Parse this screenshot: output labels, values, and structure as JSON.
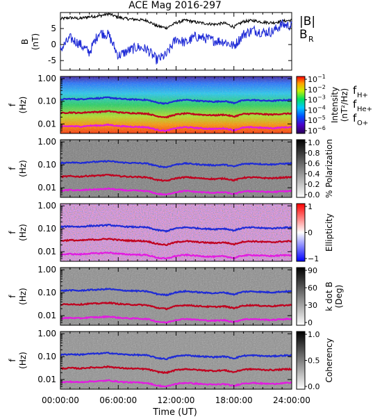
{
  "figure": {
    "title": "ACE Mag 2016-297",
    "xlabel": "Time (UT)",
    "xticks": [
      "00:00:00",
      "06:00:00",
      "12:00:00",
      "18:00:00",
      "24:00:00"
    ],
    "xrange_hours": [
      0,
      24
    ]
  },
  "chart_data": [
    {
      "type": "line",
      "panel": "magnetic-field",
      "ylabel": "B",
      "yunit": "(nT)",
      "ylim": [
        -8,
        10
      ],
      "yticks": [
        "-5",
        "0",
        "5"
      ],
      "x_hours": [
        0,
        1,
        2,
        3,
        4,
        5,
        6,
        7,
        8,
        9,
        10,
        11,
        12,
        13,
        14,
        15,
        16,
        17,
        18,
        19,
        20,
        21,
        22,
        23,
        24
      ],
      "series": [
        {
          "name": "|B|",
          "color": "#000000",
          "values": [
            8.0,
            8.4,
            8.1,
            8.7,
            8.9,
            9.6,
            8.5,
            8.0,
            7.8,
            7.5,
            5.8,
            5.2,
            6.8,
            7.6,
            7.0,
            6.6,
            6.3,
            6.7,
            5.5,
            7.2,
            7.5,
            7.0,
            6.8,
            7.3,
            7.6
          ]
        },
        {
          "name": "B",
          "subscript": "R",
          "color": "#1f2bd6",
          "values": [
            -1.5,
            2.0,
            0.2,
            -2.5,
            3.8,
            3.0,
            -3.5,
            -2.0,
            -0.8,
            -1.5,
            -4.8,
            -3.2,
            1.8,
            0.5,
            2.5,
            2.0,
            1.2,
            1.0,
            -0.5,
            3.2,
            4.5,
            3.8,
            4.0,
            6.3,
            5.8
          ]
        }
      ]
    },
    {
      "type": "heatmap",
      "panel": "intensity",
      "ylabel": "f",
      "yunit": "(Hz)",
      "yticks": [
        "1.00",
        "0.10",
        "0.01"
      ],
      "colorbar_label": "Intensity",
      "colorbar_unit": "(nT²/Hz)",
      "colorbar_ticks": [
        "10",
        "10",
        "10",
        "10",
        "10",
        "10"
      ],
      "colorbar_exponents": [
        "−1",
        "−2",
        "−3",
        "−4",
        "−5",
        "−6"
      ]
    },
    {
      "type": "heatmap",
      "panel": "polarization",
      "ylabel": "f",
      "yunit": "(Hz)",
      "yticks": [
        "1.00",
        "0.10",
        "0.01"
      ],
      "colorbar_label": "% Polarization",
      "colorbar_ticks": [
        "1.0",
        "0.8",
        "0.6",
        "0.4",
        "0.2",
        "0.0"
      ]
    },
    {
      "type": "heatmap",
      "panel": "ellipticity",
      "ylabel": "f",
      "yunit": "(Hz)",
      "yticks": [
        "1.00",
        "0.10",
        "0.01"
      ],
      "colorbar_label": "Ellipticity",
      "colorbar_ticks": [
        "1",
        "0",
        "−1"
      ]
    },
    {
      "type": "heatmap",
      "panel": "k-dot-b",
      "ylabel": "f",
      "yunit": "(Hz)",
      "yticks": [
        "1.00",
        "0.10",
        "0.01"
      ],
      "colorbar_label": "k dot B",
      "colorbar_unit": "(Deg)",
      "colorbar_ticks": [
        "90",
        "60",
        "30",
        "0"
      ]
    },
    {
      "type": "heatmap",
      "panel": "coherency",
      "ylabel": "f",
      "yunit": "(Hz)",
      "yticks": [
        "1.00",
        "0.10",
        "0.01"
      ],
      "colorbar_label": "Coherency",
      "colorbar_ticks": [
        "1.0",
        "0.5",
        "0.0"
      ]
    }
  ],
  "gyrofrequencies": {
    "x_hours": [
      0,
      1,
      2,
      3,
      4,
      5,
      6,
      7,
      8,
      9,
      10,
      11,
      12,
      13,
      14,
      15,
      16,
      17,
      18,
      19,
      20,
      21,
      22,
      23,
      24
    ],
    "fH_hz": [
      0.12,
      0.128,
      0.122,
      0.133,
      0.136,
      0.146,
      0.13,
      0.122,
      0.119,
      0.114,
      0.088,
      0.079,
      0.104,
      0.116,
      0.107,
      0.1,
      0.096,
      0.102,
      0.084,
      0.11,
      0.114,
      0.107,
      0.104,
      0.111,
      0.116
    ],
    "legend": [
      {
        "label": "f",
        "sub": "H+",
        "color": "#1f2bd6"
      },
      {
        "label": "f",
        "sub": "He+",
        "color": "#c0001e"
      },
      {
        "label": "f",
        "sub": "O+",
        "color": "#e21be0"
      }
    ],
    "b_legend": "|B|"
  }
}
